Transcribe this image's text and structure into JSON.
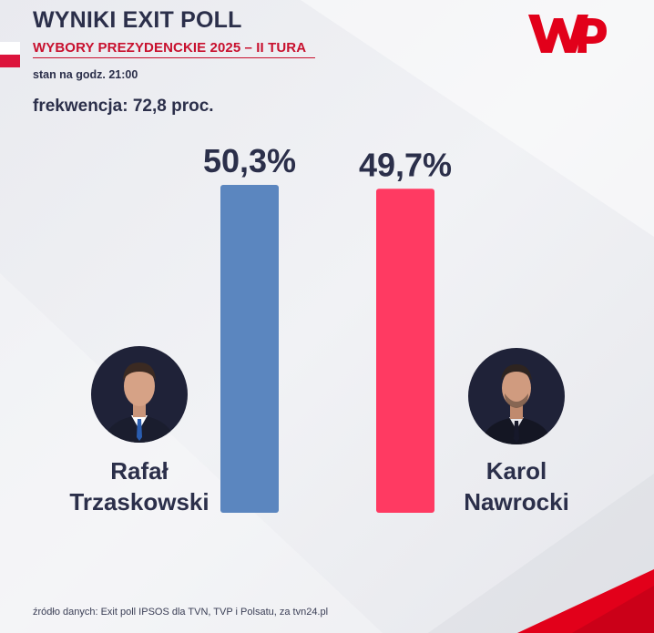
{
  "header": {
    "title": "WYNIKI EXIT POLL",
    "subtitle": "WYBORY PREZYDENCKIE 2025 – II TURA",
    "time": "stan na godz. 21:00",
    "turnout": "frekwencja: 72,8 proc."
  },
  "brand": {
    "logo_text": "WP",
    "logo_color": "#e2001a"
  },
  "chart_data": {
    "type": "bar",
    "categories": [
      "Rafał Trzaskowski",
      "Karol Nawrocki"
    ],
    "values": [
      50.3,
      49.7
    ],
    "value_labels": [
      "50,3%",
      "49,7%"
    ],
    "colors": [
      "#5b86bf",
      "#ff3a62"
    ],
    "ylim": [
      0,
      55
    ],
    "grid": false,
    "legend": "none"
  },
  "candidates": [
    {
      "first_name": "Rafał",
      "last_name": "Trzaskowski"
    },
    {
      "first_name": "Karol",
      "last_name": "Nawrocki"
    }
  ],
  "footer": {
    "source": "źródło danych: Exit poll IPSOS dla TVN, TVP i Polsatu, za tvn24.pl"
  },
  "colors": {
    "text": "#2b2f4a",
    "accent_red": "#c8102e",
    "background": "#ecedf2"
  }
}
